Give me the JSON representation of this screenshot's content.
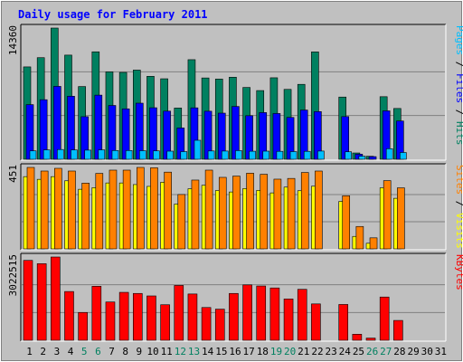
{
  "chart_data": {
    "type": "bar",
    "title": "Daily usage for February 2011",
    "x": [
      "1",
      "2",
      "3",
      "4",
      "5",
      "6",
      "7",
      "8",
      "9",
      "10",
      "11",
      "12",
      "13",
      "14",
      "15",
      "16",
      "17",
      "18",
      "19",
      "20",
      "21",
      "22",
      "23",
      "24",
      "25",
      "26",
      "27",
      "28",
      "29",
      "30",
      "31"
    ],
    "weekend_days": [
      "5",
      "6",
      "12",
      "13",
      "19",
      "20",
      "26",
      "27"
    ],
    "panels": [
      {
        "id": "hits",
        "max_label": "14360",
        "ymax": 14360,
        "right_labels": [
          {
            "text": "Pages",
            "color": "#00bfff"
          },
          {
            "text": " / ",
            "color": "#000000"
          },
          {
            "text": "Files",
            "color": "#0000ff"
          },
          {
            "text": " / ",
            "color": "#000000"
          },
          {
            "text": "Hits",
            "color": "#008060"
          }
        ],
        "series": [
          {
            "name": "Hits",
            "color": "#008060",
            "values": [
              10110,
              11120,
              14360,
              11400,
              7960,
              11760,
              9570,
              9510,
              9760,
              9080,
              8810,
              5610,
              10900,
              8900,
              8780,
              8980,
              7860,
              7520,
              8920,
              7650,
              8200,
              11750,
              0,
              6810,
              690,
              330,
              6850,
              5560,
              0,
              0,
              0
            ]
          },
          {
            "name": "Files",
            "color": "#0000ff",
            "values": [
              5980,
              6520,
              7980,
              6900,
              4660,
              7020,
              5890,
              5520,
              6140,
              5640,
              5270,
              3430,
              5630,
              5260,
              5050,
              5780,
              4770,
              5110,
              5010,
              4580,
              5390,
              5220,
              0,
              4670,
              560,
              290,
              5300,
              4190,
              0,
              0,
              0
            ]
          },
          {
            "name": "Pages",
            "color": "#00bfff",
            "values": [
              920,
              1030,
              1070,
              1020,
              1000,
              1030,
              960,
              960,
              940,
              920,
              890,
              840,
              2080,
              910,
              900,
              950,
              880,
              890,
              870,
              840,
              870,
              900,
              0,
              820,
              340,
              0,
              1160,
              740,
              0,
              0,
              0
            ]
          }
        ]
      },
      {
        "id": "visits",
        "max_label": "451",
        "ymax": 451,
        "right_labels": [
          {
            "text": "Sites",
            "color": "#ff8000"
          },
          {
            "text": " / ",
            "color": "#000000"
          },
          {
            "text": "Visits",
            "color": "#ffff00"
          }
        ],
        "series": [
          {
            "name": "Visits",
            "color": "#ffff00",
            "values": [
              400,
              385,
              400,
              377,
              330,
              339,
              365,
              365,
              356,
              346,
              369,
              248,
              333,
              352,
              323,
              315,
              334,
              324,
              310,
              342,
              322,
              347,
              0,
              263,
              69,
              31,
              338,
              280,
              0,
              0,
              0
            ]
          },
          {
            "name": "Sites",
            "color": "#ff8000",
            "values": [
              451,
              431,
              446,
              431,
              364,
              418,
              436,
              436,
              451,
              449,
              425,
              301,
              381,
              436,
              396,
              403,
              419,
              413,
              386,
              390,
              423,
              431,
              0,
              294,
              124,
              61,
              378,
              338,
              0,
              0,
              0
            ]
          }
        ]
      },
      {
        "id": "kbytes",
        "max_label": "3022515",
        "ymax": 3022515,
        "right_labels": [
          {
            "text": "KBytes",
            "color": "#ff0000"
          }
        ],
        "series": [
          {
            "name": "KBytes",
            "color": "#ff0000",
            "values": [
              2900000,
              2780000,
              3022515,
              1770000,
              1010000,
              1960000,
              1390000,
              1740000,
              1700000,
              1610000,
              1290000,
              1990000,
              1680000,
              1190000,
              1130000,
              1700000,
              2010000,
              1970000,
              1900000,
              1500000,
              1850000,
              1320000,
              0,
              1300000,
              220000,
              80000,
              1570000,
              720000,
              0,
              0,
              0
            ]
          }
        ]
      }
    ]
  }
}
